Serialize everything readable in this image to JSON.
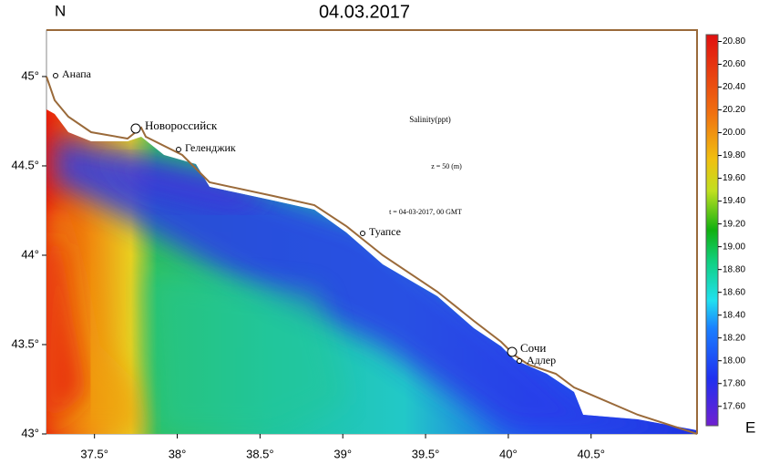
{
  "chart_data": {
    "type": "heatmap",
    "title": "04.03.2017",
    "y_label": "N",
    "x_label": "E",
    "annotations": [
      "Salinity(ppt)",
      "z = 50 (m)",
      "t = 04-03-2017, 00 GMT"
    ],
    "cities": [
      "Анапа",
      "Новороссийск",
      "Геленджик",
      "Туапсе",
      "Сочи",
      "Адлер"
    ],
    "xlim": [
      37.21,
      41.14
    ],
    "ylim": [
      43,
      45.26
    ],
    "xticks": [
      {
        "value": 37.5,
        "label": "37.5°"
      },
      {
        "value": 38,
        "label": "38°"
      },
      {
        "value": 38.5,
        "label": "38.5°"
      },
      {
        "value": 39,
        "label": "39°"
      },
      {
        "value": 39.5,
        "label": "39.5°"
      },
      {
        "value": 40,
        "label": "40°"
      },
      {
        "value": 40.5,
        "label": "40.5°"
      }
    ],
    "yticks": [
      {
        "value": 43,
        "label": "43°"
      },
      {
        "value": 43.5,
        "label": "43.5°"
      },
      {
        "value": 44,
        "label": "44°"
      },
      {
        "value": 44.5,
        "label": "44.5°"
      },
      {
        "value": 45,
        "label": "45°"
      }
    ],
    "clim": [
      17.43,
      20.86
    ],
    "cticks": [
      {
        "value": 17.6,
        "label": "17.60"
      },
      {
        "value": 17.8,
        "label": "17.80"
      },
      {
        "value": 18,
        "label": "18.00"
      },
      {
        "value": 18.2,
        "label": "18.20"
      },
      {
        "value": 18.4,
        "label": "18.40"
      },
      {
        "value": 18.6,
        "label": "18.60"
      },
      {
        "value": 18.8,
        "label": "18.80"
      },
      {
        "value": 19,
        "label": "19.00"
      },
      {
        "value": 19.2,
        "label": "19.20"
      },
      {
        "value": 19.4,
        "label": "19.40"
      },
      {
        "value": 19.6,
        "label": "19.60"
      },
      {
        "value": 19.8,
        "label": "19.80"
      },
      {
        "value": 20,
        "label": "20.00"
      },
      {
        "value": 20.2,
        "label": "20.20"
      },
      {
        "value": 20.4,
        "label": "20.40"
      },
      {
        "value": 20.6,
        "label": "20.60"
      },
      {
        "value": 20.8,
        "label": "20.80"
      }
    ]
  }
}
